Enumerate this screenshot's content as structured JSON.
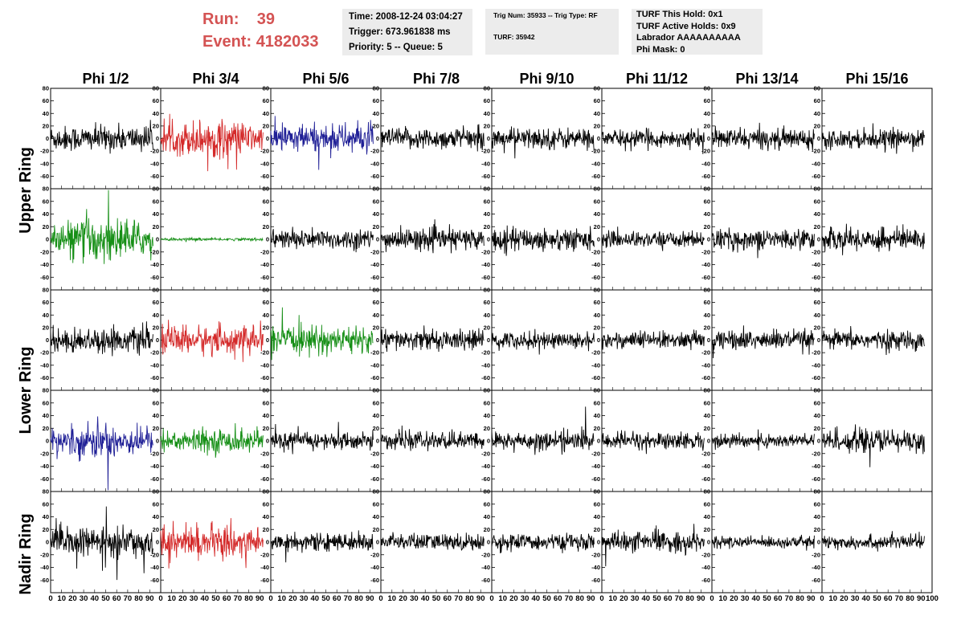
{
  "run_info": {
    "run_label": "Run:",
    "run_value": "39",
    "event_label": "Event:",
    "event_value": "4182033"
  },
  "info_boxes": {
    "time": "Time: 2008-12-24 03:04:27",
    "trigger": "Trigger: 673.961838 ms",
    "priority": "Priority: 5 -- Queue: 5",
    "trig_num": "Trig Num: 35933 -- Trig Type: RF",
    "turf": "TURF: 35942",
    "turf_this_hold": "TURF This Hold: 0x1",
    "turf_active_holds": "TURF Active Holds: 0x9",
    "labrador": "Labrador AAAAAAAAAA",
    "phi_mask": "Phi Mask: 0"
  },
  "colors": {
    "black": "#000000",
    "red": "#d42a2a",
    "green": "#168f16",
    "blue": "#1f1f96",
    "title_red": "#d45353",
    "info_bg": "#ececec"
  },
  "chart_data": {
    "type": "line",
    "columns": [
      "Phi 1/2",
      "Phi 3/4",
      "Phi 5/6",
      "Phi 7/8",
      "Phi 9/10",
      "Phi 11/12",
      "Phi 13/14",
      "Phi 15/16"
    ],
    "ring_labels": [
      "Upper Ring",
      "Lower Ring",
      "Nadir Ring"
    ],
    "panel_rows": 5,
    "ylim": [
      -80,
      80
    ],
    "y_ticks": [
      80,
      60,
      40,
      20,
      0,
      -20,
      -40,
      -60,
      -80
    ],
    "y_tick_labels_shown": [
      "80",
      "60",
      "40",
      "20",
      "0",
      "-20",
      "-40",
      "-60"
    ],
    "xlim": [
      0,
      100
    ],
    "x_tick_labels": [
      "0",
      "10",
      "20",
      "30",
      "40",
      "50",
      "60",
      "70",
      "80",
      "90",
      "100"
    ],
    "x_bottom_labels": [
      "0 10 20 30 40 50 60 70 80 90",
      "10",
      "0"
    ],
    "trace_end_x": 93,
    "panels": [
      [
        "black",
        "red",
        "blue",
        "black",
        "black",
        "black",
        "black",
        "black"
      ],
      [
        "green",
        "green",
        "black",
        "black",
        "black",
        "black",
        "black",
        "black"
      ],
      [
        "black",
        "red",
        "green",
        "black",
        "black",
        "black",
        "black",
        "black"
      ],
      [
        "blue",
        "green",
        "black",
        "black",
        "black",
        "black",
        "black",
        "black"
      ],
      [
        "black",
        "red",
        "black",
        "black",
        "black",
        "black",
        "black",
        "black"
      ]
    ],
    "amplitudes": [
      [
        18,
        28,
        20,
        15,
        15,
        12,
        14,
        13
      ],
      [
        32,
        2,
        14,
        15,
        16,
        11,
        14,
        16
      ],
      [
        17,
        20,
        19,
        14,
        12,
        12,
        14,
        13
      ],
      [
        25,
        16,
        12,
        12,
        13,
        12,
        10,
        16
      ],
      [
        20,
        22,
        12,
        12,
        11,
        14,
        8,
        10
      ]
    ],
    "title": "",
    "xlabel": "",
    "ylabel": ""
  }
}
